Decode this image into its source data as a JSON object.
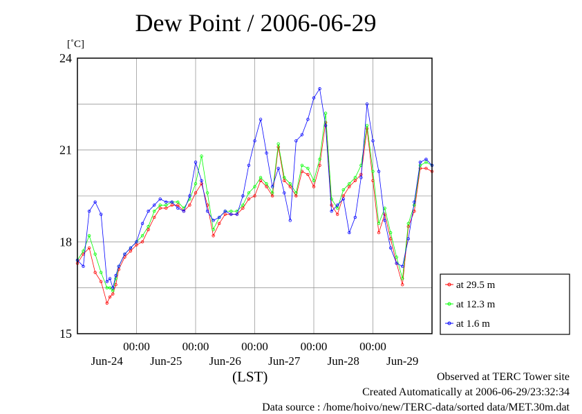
{
  "chart_data": {
    "type": "line",
    "title": "Dew Point / 2006-06-29",
    "ylabel": "[˚C]",
    "xlabel": "(LST)",
    "ylim": [
      15,
      24
    ],
    "yticks": [
      15,
      18,
      21,
      24
    ],
    "xlim": [
      -1.0,
      5.0
    ],
    "time_ticks": [
      "00:00",
      "00:00",
      "00:00",
      "00:00",
      "00:00"
    ],
    "date_labels": [
      "Jun-24",
      "Jun-25",
      "Jun-26",
      "Jun-27",
      "Jun-28",
      "Jun-29"
    ],
    "grid": true,
    "legend_position": "right-bottom",
    "series": [
      {
        "name": "at 29.5 m",
        "color": "#ff0000",
        "x": [
          -1.0,
          -0.9,
          -0.8,
          -0.7,
          -0.6,
          -0.5,
          -0.45,
          -0.4,
          -0.35,
          -0.3,
          -0.2,
          -0.1,
          0.0,
          0.1,
          0.2,
          0.3,
          0.4,
          0.5,
          0.6,
          0.7,
          0.8,
          0.9,
          1.0,
          1.1,
          1.2,
          1.3,
          1.4,
          1.5,
          1.6,
          1.7,
          1.8,
          1.9,
          2.0,
          2.1,
          2.2,
          2.3,
          2.4,
          2.5,
          2.6,
          2.7,
          2.8,
          2.9,
          3.0,
          3.1,
          3.2,
          3.3,
          3.4,
          3.5,
          3.6,
          3.7,
          3.8,
          3.9,
          4.0,
          4.1,
          4.2,
          4.3,
          4.4,
          4.5,
          4.6,
          4.7,
          4.8,
          4.9,
          5.0
        ],
        "y": [
          17.3,
          17.6,
          17.8,
          17.0,
          16.7,
          16.0,
          16.2,
          16.3,
          16.6,
          17.1,
          17.5,
          17.7,
          17.9,
          18.0,
          18.4,
          18.8,
          19.1,
          19.1,
          19.2,
          19.2,
          19.0,
          19.2,
          19.6,
          19.9,
          19.2,
          18.2,
          18.6,
          18.9,
          18.9,
          18.9,
          19.1,
          19.4,
          19.5,
          20.0,
          19.8,
          19.5,
          21.1,
          20.0,
          19.8,
          19.5,
          20.3,
          20.2,
          19.8,
          20.5,
          21.9,
          19.2,
          18.9,
          19.5,
          19.8,
          20.0,
          20.2,
          21.7,
          20.0,
          18.3,
          18.9,
          18.1,
          17.3,
          16.6,
          18.5,
          19.0,
          20.4,
          20.4,
          20.3
        ]
      },
      {
        "name": "at 12.3 m",
        "color": "#00ff00",
        "x": [
          -1.0,
          -0.9,
          -0.8,
          -0.7,
          -0.6,
          -0.5,
          -0.45,
          -0.4,
          -0.35,
          -0.3,
          -0.2,
          -0.1,
          0.0,
          0.1,
          0.2,
          0.3,
          0.4,
          0.5,
          0.6,
          0.7,
          0.8,
          0.9,
          1.0,
          1.1,
          1.2,
          1.3,
          1.4,
          1.5,
          1.6,
          1.7,
          1.8,
          1.9,
          2.0,
          2.1,
          2.2,
          2.3,
          2.4,
          2.5,
          2.6,
          2.7,
          2.8,
          2.9,
          3.0,
          3.1,
          3.2,
          3.3,
          3.4,
          3.5,
          3.6,
          3.7,
          3.8,
          3.9,
          4.0,
          4.1,
          4.2,
          4.3,
          4.4,
          4.5,
          4.6,
          4.7,
          4.8,
          4.9,
          5.0
        ],
        "y": [
          17.4,
          17.7,
          18.2,
          17.6,
          17.0,
          16.5,
          16.5,
          16.4,
          16.8,
          17.2,
          17.6,
          17.8,
          18.0,
          18.2,
          18.5,
          19.0,
          19.2,
          19.2,
          19.3,
          19.3,
          19.1,
          19.4,
          19.9,
          20.8,
          19.6,
          18.4,
          18.8,
          19.0,
          19.0,
          19.0,
          19.2,
          19.6,
          19.8,
          20.1,
          19.9,
          19.6,
          21.2,
          20.1,
          19.9,
          19.6,
          20.5,
          20.4,
          20.0,
          20.7,
          22.2,
          19.4,
          19.1,
          19.7,
          19.9,
          20.1,
          20.5,
          21.8,
          20.3,
          18.6,
          19.1,
          18.3,
          17.5,
          16.8,
          18.6,
          19.2,
          20.5,
          20.6,
          20.5
        ]
      },
      {
        "name": "at 1.6 m",
        "color": "#0000ff",
        "x": [
          -1.0,
          -0.9,
          -0.8,
          -0.7,
          -0.6,
          -0.5,
          -0.45,
          -0.4,
          -0.35,
          -0.3,
          -0.2,
          -0.1,
          0.0,
          0.1,
          0.2,
          0.3,
          0.4,
          0.5,
          0.6,
          0.7,
          0.8,
          0.9,
          1.0,
          1.1,
          1.2,
          1.3,
          1.4,
          1.5,
          1.6,
          1.7,
          1.8,
          1.9,
          2.0,
          2.1,
          2.2,
          2.3,
          2.4,
          2.5,
          2.6,
          2.7,
          2.8,
          2.9,
          3.0,
          3.1,
          3.2,
          3.3,
          3.4,
          3.5,
          3.6,
          3.7,
          3.8,
          3.9,
          4.0,
          4.1,
          4.2,
          4.3,
          4.4,
          4.5,
          4.6,
          4.7,
          4.8,
          4.9,
          5.0
        ],
        "y": [
          17.4,
          17.2,
          19.0,
          19.3,
          18.9,
          16.7,
          16.8,
          16.5,
          16.9,
          17.2,
          17.6,
          17.8,
          18.0,
          18.6,
          19.0,
          19.2,
          19.4,
          19.3,
          19.3,
          19.1,
          19.0,
          19.5,
          20.6,
          20.0,
          19.0,
          18.7,
          18.8,
          19.0,
          18.9,
          18.9,
          19.5,
          20.5,
          21.3,
          22.0,
          20.9,
          19.8,
          20.4,
          19.6,
          18.7,
          21.3,
          21.5,
          22.0,
          22.7,
          23.0,
          21.8,
          19.0,
          19.2,
          19.4,
          18.3,
          18.8,
          20.1,
          22.5,
          21.3,
          20.3,
          18.7,
          17.8,
          17.3,
          17.2,
          18.1,
          19.3,
          20.6,
          20.7,
          20.5
        ]
      }
    ]
  },
  "footer": {
    "site": "Observed at TERC Tower site",
    "created": "Created Automatically at 2006-06-29/23:32:34",
    "source": "Data source : /home/hoivo/new/TERC-data/sorted data/MET.30m.dat"
  }
}
